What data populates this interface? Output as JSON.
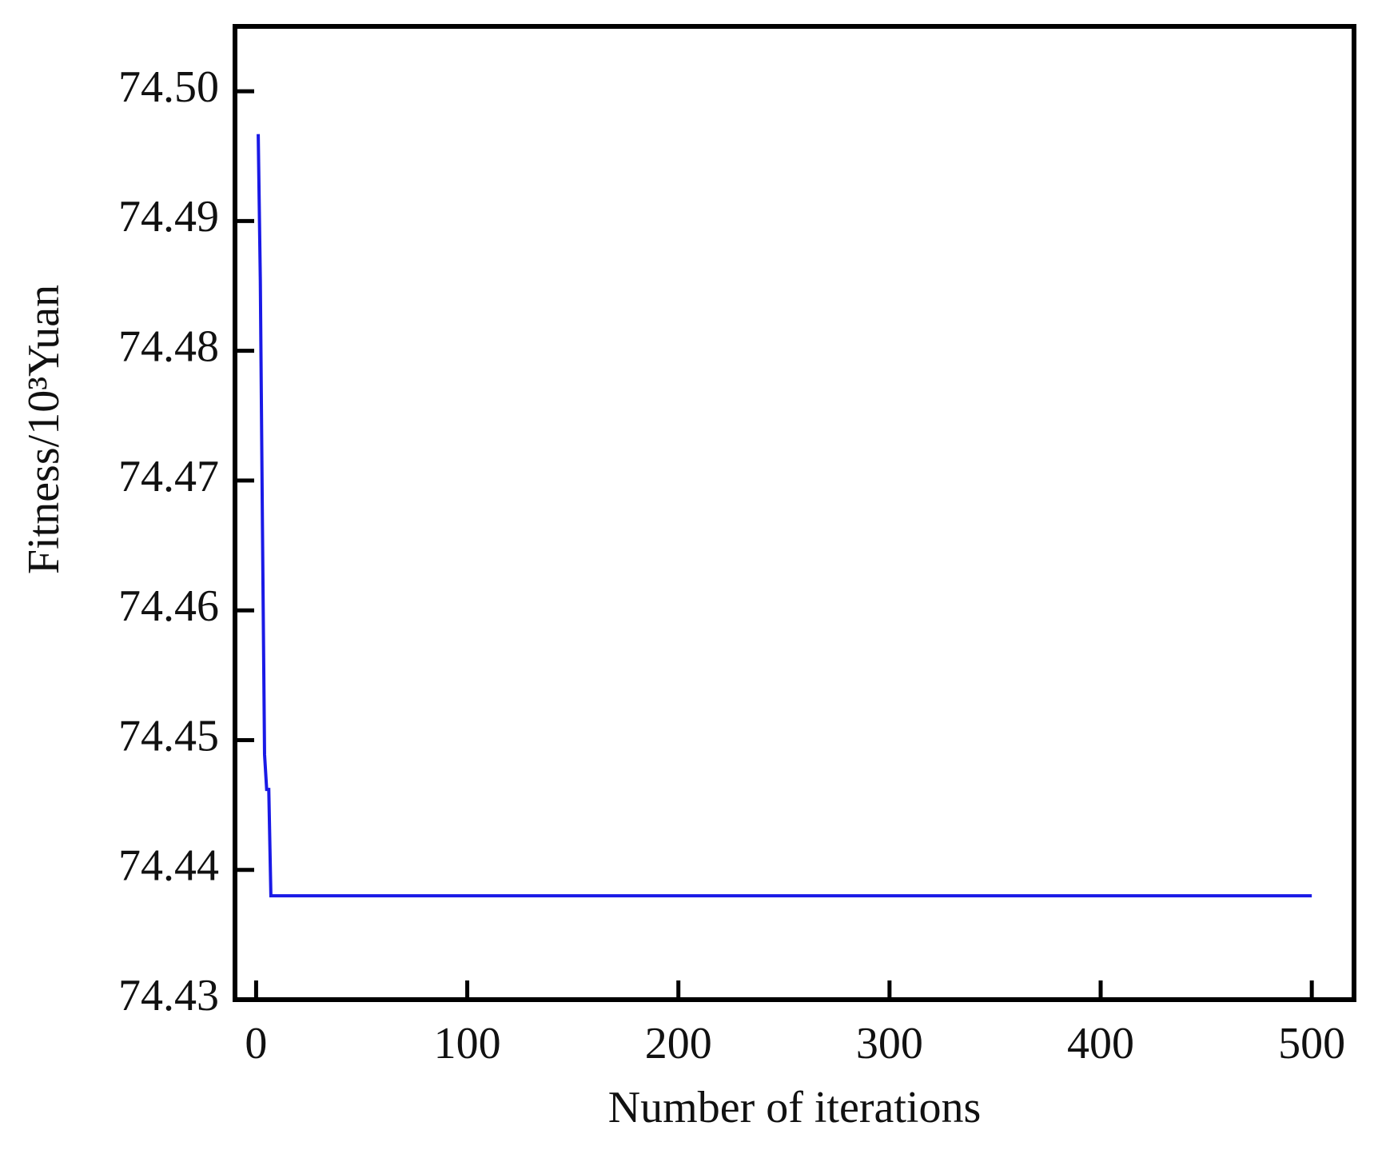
{
  "chart_data": {
    "type": "line",
    "xlabel": "Number of iterations",
    "ylabel": "Fitness/10³Yuan",
    "series": [
      {
        "color": "#1a1ae6",
        "x": [
          1,
          2,
          3,
          4,
          5,
          6,
          7,
          500
        ],
        "values": [
          74.4967,
          74.4854,
          74.4665,
          74.4489,
          74.4462,
          74.4462,
          74.438,
          74.438
        ]
      }
    ],
    "xlim": [
      -10,
      520
    ],
    "xticks": [
      0,
      100,
      200,
      300,
      400,
      500
    ],
    "ylim": [
      74.43,
      74.505
    ],
    "yticks": [
      74.43,
      74.44,
      74.45,
      74.46,
      74.47,
      74.48,
      74.49,
      {
        "value": 74.5,
        "label": "74.50"
      }
    ],
    "grid": false
  }
}
